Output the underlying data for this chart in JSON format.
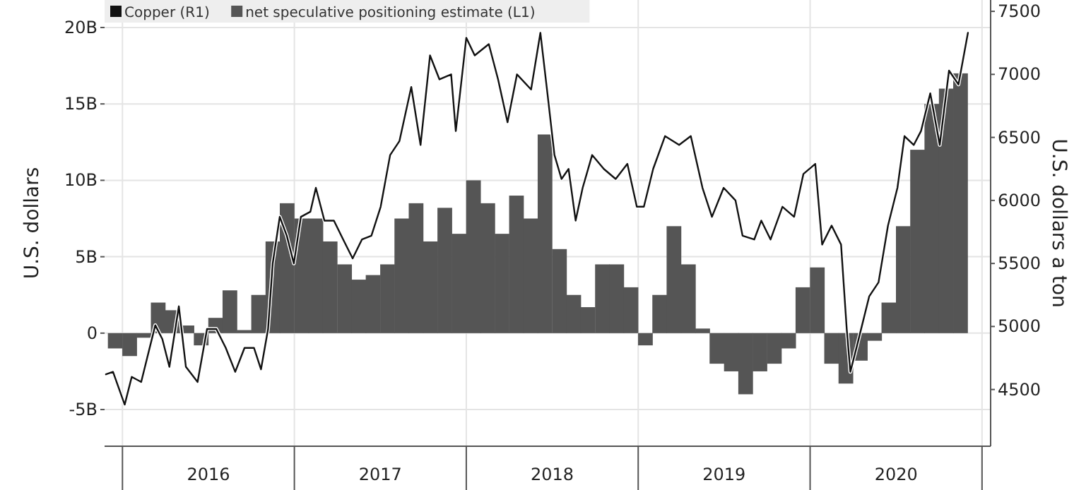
{
  "chart_data": {
    "type": "bar",
    "ylabel": "U.S. dollars",
    "y2label": "U.S. dollars a ton",
    "legend": "top left",
    "grid": true,
    "xlim": [
      2015.896,
      2021.05
    ],
    "xticks": [
      {
        "value": 2016,
        "label": null
      },
      {
        "value": 2016.5,
        "label": "2016"
      },
      {
        "value": 2017,
        "label": null
      },
      {
        "value": 2017.5,
        "label": "2017"
      },
      {
        "value": 2018,
        "label": null
      },
      {
        "value": 2018.5,
        "label": "2018"
      },
      {
        "value": 2019,
        "label": null
      },
      {
        "value": 2019.5,
        "label": "2019"
      },
      {
        "value": 2020,
        "label": null
      },
      {
        "value": 2020.5,
        "label": "2020"
      },
      {
        "value": 2021,
        "label": null
      }
    ],
    "ylim": [
      -7.4,
      21.8
    ],
    "yticks": [
      {
        "value": -5,
        "label": "-5B"
      },
      0,
      {
        "value": 5,
        "label": "5B"
      },
      {
        "value": 10,
        "label": "10B"
      },
      {
        "value": 15,
        "label": "15B"
      },
      {
        "value": 20,
        "label": "20B"
      }
    ],
    "y2lim": [
      4050,
      7590
    ],
    "y2ticks": [
      4500,
      5000,
      5500,
      6000,
      6500,
      7000,
      7500
    ],
    "series": [
      {
        "type": "line",
        "axis": "y2",
        "name": "Copper (R1)",
        "color": "#111111",
        "x": [
          2015.904,
          2015.945,
          2016.013,
          2016.054,
          2016.109,
          2016.191,
          2016.232,
          2016.273,
          2016.328,
          2016.369,
          2016.437,
          2016.492,
          2016.546,
          2016.601,
          2016.656,
          2016.71,
          2016.765,
          2016.806,
          2016.847,
          2016.874,
          2016.915,
          2016.956,
          2016.997,
          2017.038,
          2017.093,
          2017.125,
          2017.175,
          2017.23,
          2017.284,
          2017.339,
          2017.393,
          2017.448,
          2017.502,
          2017.557,
          2017.611,
          2017.68,
          2017.734,
          2017.789,
          2017.844,
          2017.912,
          2017.939,
          2018,
          2018.049,
          2018.131,
          2018.185,
          2018.24,
          2018.295,
          2018.377,
          2018.431,
          2018.472,
          2018.513,
          2018.554,
          2018.595,
          2018.636,
          2018.677,
          2018.732,
          2018.8,
          2018.869,
          2018.937,
          2018.992,
          2019.033,
          2019.087,
          2019.156,
          2019.238,
          2019.306,
          2019.374,
          2019.429,
          2019.497,
          2019.566,
          2019.607,
          2019.675,
          2019.716,
          2019.77,
          2019.839,
          2019.907,
          2019.961,
          2020.03,
          2020.07,
          2020.125,
          2020.18,
          2020.213,
          2020.234,
          2020.275,
          2020.344,
          2020.398,
          2020.453,
          2020.508,
          2020.549,
          2020.603,
          2020.645,
          2020.699,
          2020.754,
          2020.808,
          2020.863,
          2020.918
        ],
        "values": [
          4620,
          4640,
          4380,
          4600,
          4560,
          5010,
          4900,
          4680,
          5160,
          4680,
          4560,
          4980,
          4980,
          4830,
          4640,
          4830,
          4830,
          4660,
          4980,
          5500,
          5870,
          5720,
          5500,
          5870,
          5910,
          6100,
          5840,
          5840,
          5690,
          5540,
          5690,
          5720,
          5950,
          6360,
          6470,
          6900,
          6440,
          7150,
          6960,
          7000,
          6550,
          7290,
          7150,
          7240,
          6960,
          6620,
          7000,
          6880,
          7330,
          6850,
          6360,
          6170,
          6250,
          5840,
          6100,
          6360,
          6250,
          6170,
          6290,
          5950,
          5950,
          6250,
          6510,
          6440,
          6510,
          6100,
          5870,
          6100,
          6000,
          5720,
          5690,
          5840,
          5690,
          5950,
          5870,
          6210,
          6290,
          5650,
          5800,
          5650,
          4980,
          4640,
          4860,
          5240,
          5350,
          5800,
          6100,
          6510,
          6440,
          6550,
          6850,
          6440,
          7030,
          6920,
          7330
        ]
      },
      {
        "name": "net speculative positioning estimate (L1)",
        "color": "#555555",
        "x": [
          2015.958,
          2016.042,
          2016.125,
          2016.208,
          2016.292,
          2016.375,
          2016.458,
          2016.542,
          2016.625,
          2016.708,
          2016.792,
          2016.875,
          2016.958,
          2017.042,
          2017.125,
          2017.208,
          2017.292,
          2017.375,
          2017.458,
          2017.542,
          2017.625,
          2017.708,
          2017.792,
          2017.875,
          2017.958,
          2018.042,
          2018.125,
          2018.208,
          2018.292,
          2018.375,
          2018.458,
          2018.542,
          2018.625,
          2018.708,
          2018.792,
          2018.875,
          2018.958,
          2019.042,
          2019.125,
          2019.208,
          2019.292,
          2019.375,
          2019.458,
          2019.542,
          2019.625,
          2019.708,
          2019.792,
          2019.875,
          2019.958,
          2020.042,
          2020.125,
          2020.208,
          2020.292,
          2020.375,
          2020.458,
          2020.542,
          2020.625,
          2020.708,
          2020.792,
          2020.875
        ],
        "values": [
          -1,
          -1.5,
          -0.3,
          2,
          1.5,
          0.5,
          -0.8,
          1,
          2.8,
          0.2,
          2.5,
          6,
          8.5,
          7.5,
          7.5,
          6,
          4.5,
          3.5,
          3.8,
          4.5,
          7.5,
          8.5,
          6,
          8.2,
          6.5,
          10,
          8.5,
          6.5,
          9,
          7.5,
          13,
          5.5,
          2.5,
          1.7,
          4.5,
          4.5,
          3,
          -0.8,
          2.5,
          7,
          4.5,
          0.3,
          -2,
          -2.5,
          -4,
          -2.5,
          -2,
          -1,
          3,
          4.3,
          -2,
          -3.3,
          -1.8,
          -0.5,
          2,
          7,
          12,
          15,
          16,
          17
        ]
      }
    ]
  }
}
